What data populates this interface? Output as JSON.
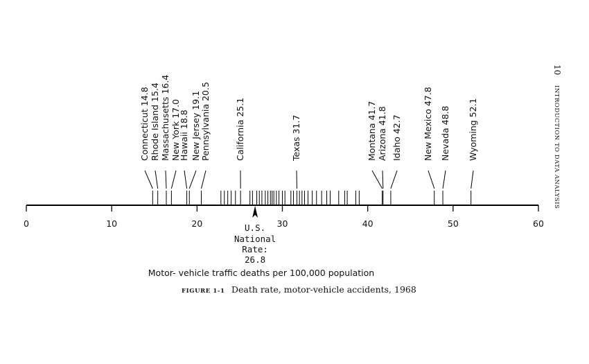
{
  "page_header": {
    "page_number": "10",
    "running_title": "INTRODUCTION TO DATA ANALYSIS"
  },
  "caption": {
    "label": "FIGURE 1-1",
    "text": "Death rate, motor-vehicle accidents, 1968"
  },
  "chart_data": {
    "type": "scatter",
    "title": "",
    "xlabel": "Motor- vehicle traffic deaths per 100,000 population",
    "ylabel": "",
    "xlim": [
      0,
      60
    ],
    "x_ticks": [
      0,
      10,
      20,
      30,
      40,
      50,
      60
    ],
    "grid": false,
    "legend": "none",
    "reference_marker": {
      "value": 26.8,
      "label_lines": [
        "U.S.",
        "National",
        "Rate:",
        "26.8"
      ]
    },
    "labeled_states": [
      {
        "name": "Connecticut",
        "value": 14.8,
        "label": "Connecticut 14.8"
      },
      {
        "name": "Rhode Island",
        "value": 15.4,
        "label": "Rhode Island 15.4"
      },
      {
        "name": "Massachusetts",
        "value": 16.4,
        "label": "Massachusetts 16.4"
      },
      {
        "name": "New York",
        "value": 17.0,
        "label": "New York 17.0"
      },
      {
        "name": "Hawaii",
        "value": 18.8,
        "label": "Hawaii 18.8"
      },
      {
        "name": "New Jersey",
        "value": 19.1,
        "label": "New Jersey 19.1"
      },
      {
        "name": "Pennsylvania",
        "value": 20.5,
        "label": "Pennsylvania 20.5"
      },
      {
        "name": "California",
        "value": 25.1,
        "label": "California 25.1"
      },
      {
        "name": "Texas",
        "value": 31.7,
        "label": "Texas 31.7"
      },
      {
        "name": "Montana",
        "value": 41.7,
        "label": "Montana 41.7"
      },
      {
        "name": "Arizona",
        "value": 41.8,
        "label": "Arizona 41.8"
      },
      {
        "name": "Idaho",
        "value": 42.7,
        "label": "Idaho 42.7"
      },
      {
        "name": "New Mexico",
        "value": 47.8,
        "label": "New Mexico 47.8"
      },
      {
        "name": "Nevada",
        "value": 48.8,
        "label": "Nevada 48.8"
      },
      {
        "name": "Wyoming",
        "value": 52.1,
        "label": "Wyoming 52.1"
      }
    ],
    "unlabeled_values": [
      22.8,
      23.2,
      23.6,
      24.0,
      24.5,
      26.2,
      26.5,
      27.0,
      27.3,
      27.6,
      28.0,
      28.3,
      28.6,
      28.8,
      29.0,
      29.3,
      29.6,
      30.0,
      30.3,
      31.0,
      31.3,
      32.0,
      32.3,
      32.6,
      33.0,
      33.5,
      34.0,
      34.6,
      35.2,
      35.6,
      36.6,
      37.3,
      37.6,
      38.6,
      39.0
    ]
  }
}
